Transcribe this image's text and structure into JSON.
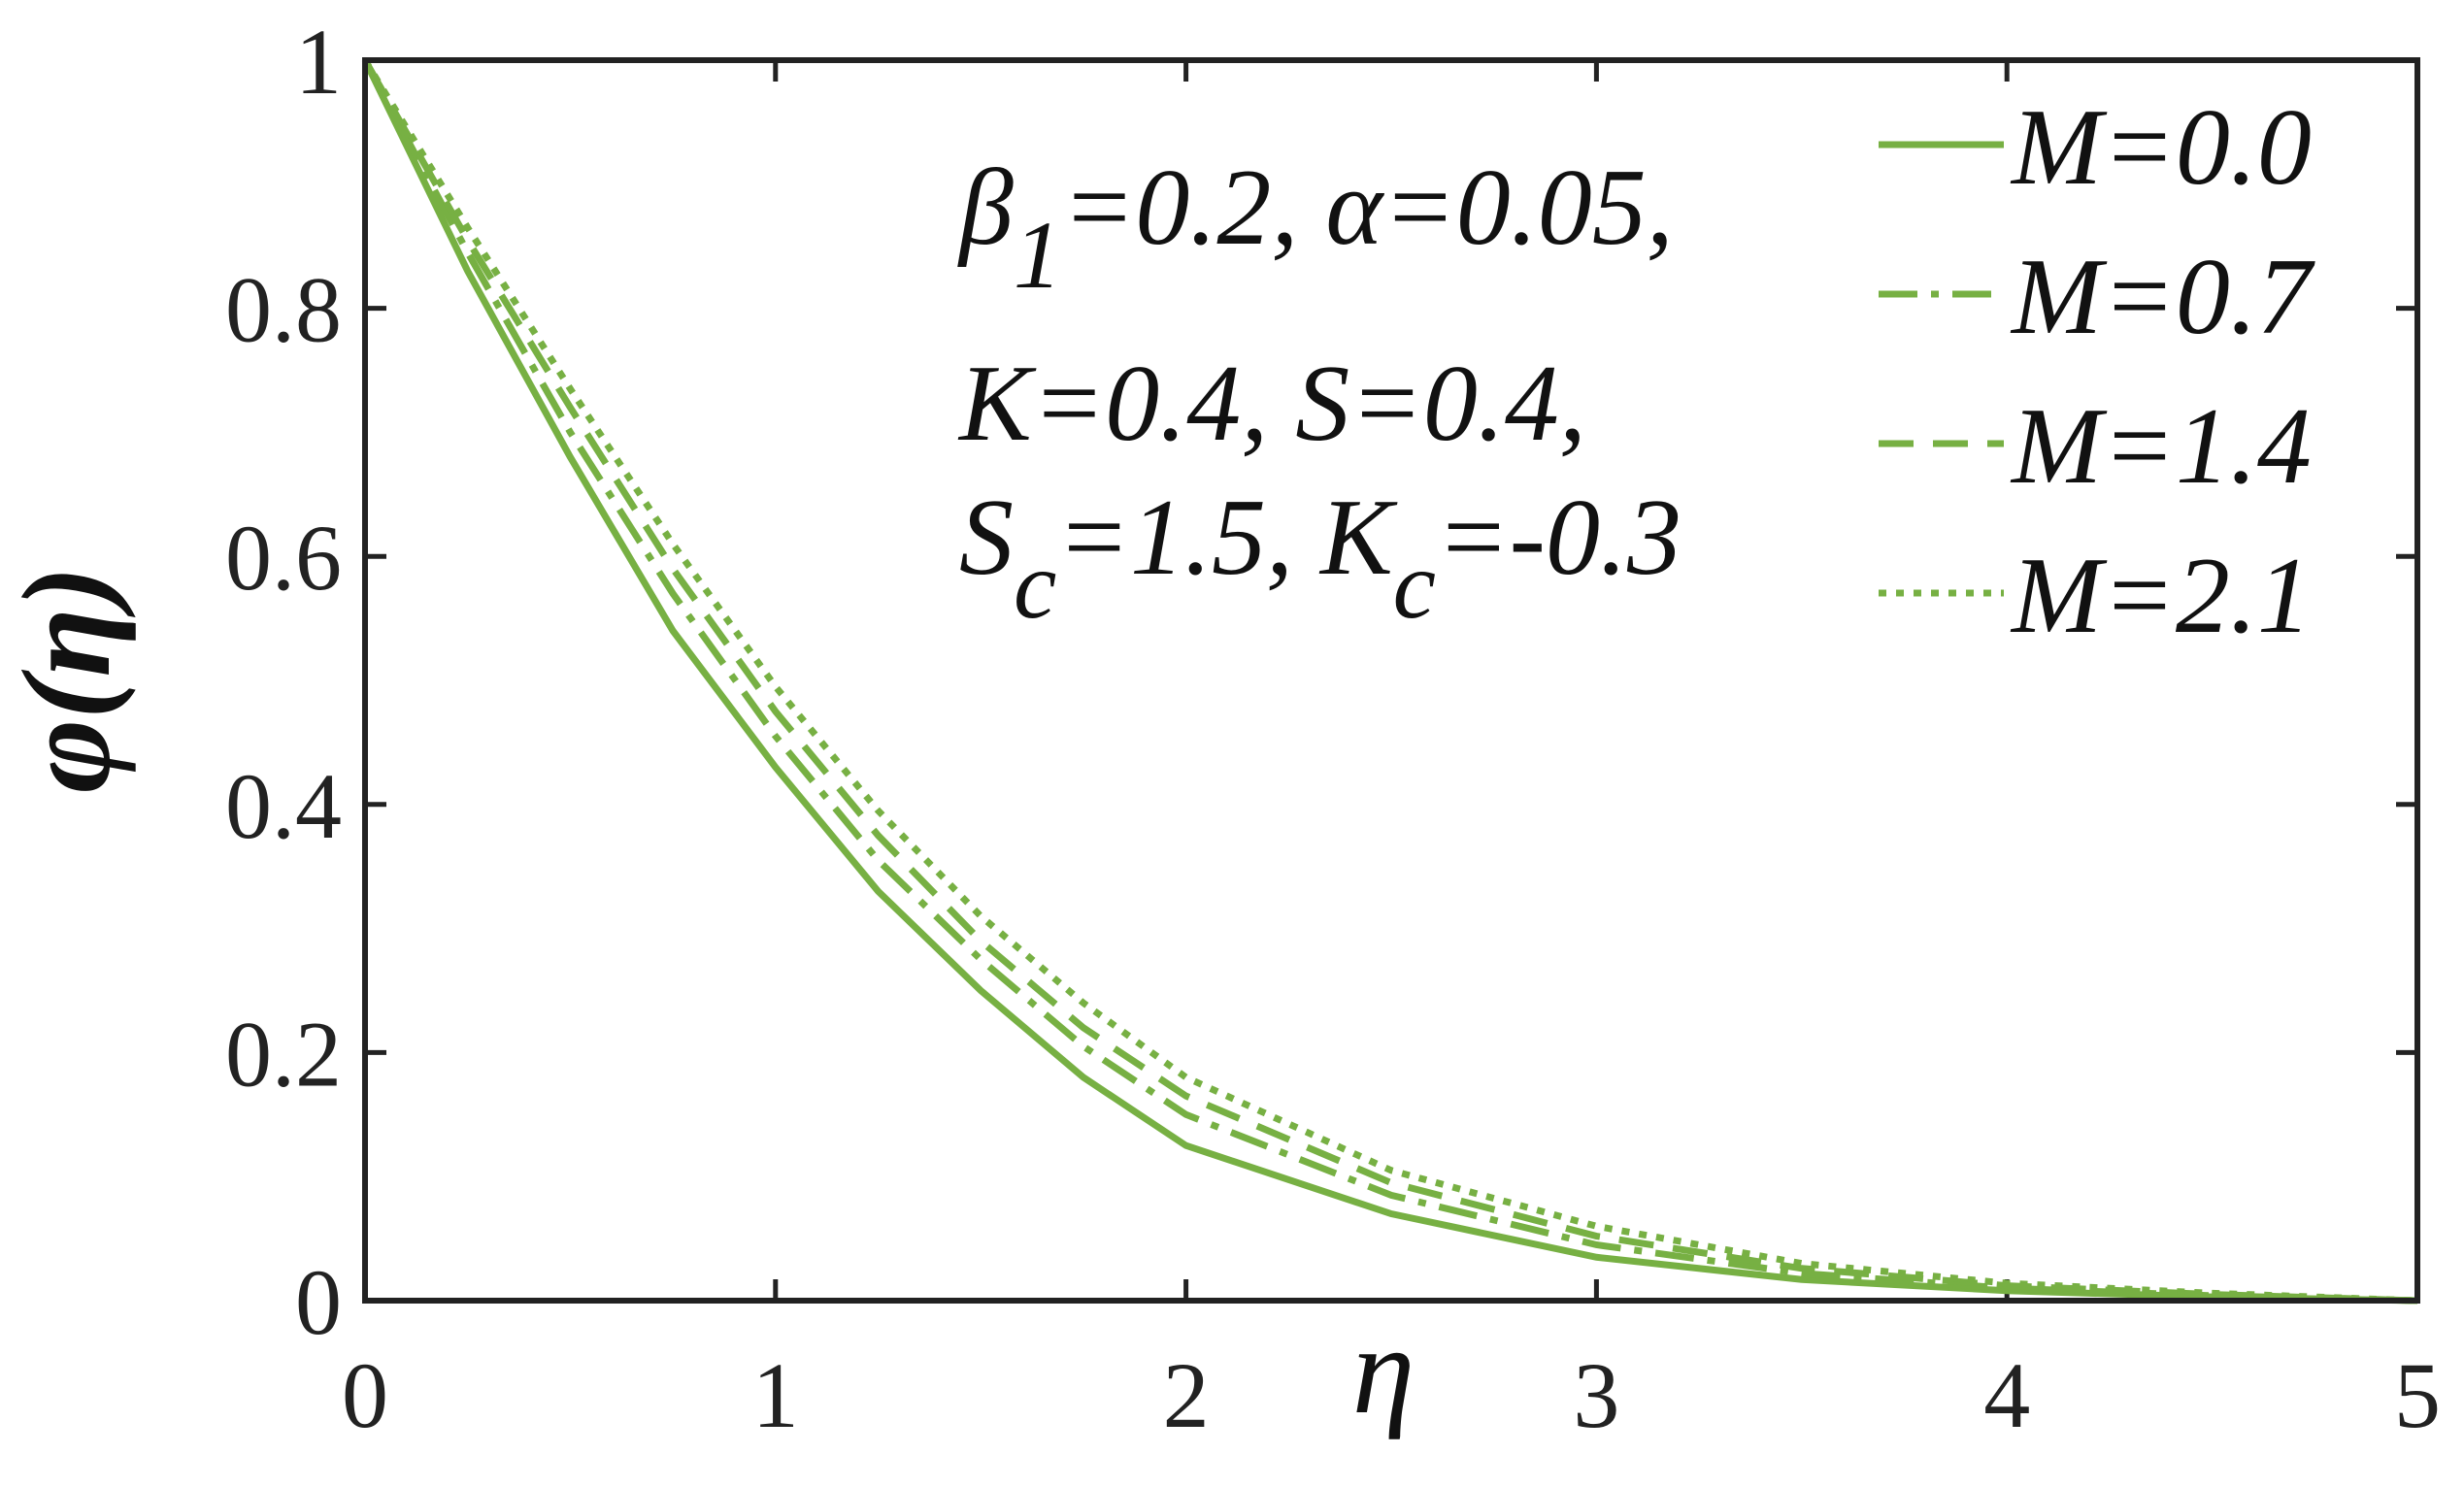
{
  "chart_data": {
    "type": "line",
    "x": [
      0,
      0.25,
      0.5,
      0.75,
      1,
      1.25,
      1.5,
      1.75,
      2,
      2.5,
      3,
      3.5,
      4,
      4.5,
      5
    ],
    "series": [
      {
        "name": "M=0.0",
        "color": "#77b043",
        "style": "solid",
        "values": [
          1,
          0.83,
          0.68,
          0.54,
          0.43,
          0.33,
          0.25,
          0.18,
          0.125,
          0.07,
          0.035,
          0.017,
          0.008,
          0.003,
          0
        ]
      },
      {
        "name": "M=0.7",
        "color": "#77b043",
        "style": "dashdot",
        "values": [
          1,
          0.845,
          0.7,
          0.57,
          0.455,
          0.355,
          0.275,
          0.205,
          0.15,
          0.085,
          0.045,
          0.022,
          0.01,
          0.004,
          0
        ]
      },
      {
        "name": "M=1.4",
        "color": "#77b043",
        "style": "dashed",
        "values": [
          1,
          0.855,
          0.72,
          0.59,
          0.475,
          0.375,
          0.29,
          0.22,
          0.165,
          0.095,
          0.052,
          0.026,
          0.012,
          0.005,
          0
        ]
      },
      {
        "name": "M=2.1",
        "color": "#77b043",
        "style": "dotted",
        "values": [
          1,
          0.865,
          0.735,
          0.61,
          0.495,
          0.395,
          0.31,
          0.24,
          0.18,
          0.105,
          0.06,
          0.03,
          0.014,
          0.006,
          0
        ]
      }
    ],
    "x_label": "η",
    "y_label": "φ(η)",
    "annotation": [
      [
        "β",
        "1",
        "=0.2, α=0.05,"
      ],
      [
        "K=0.4, S=0.4,"
      ],
      [
        "S",
        "c",
        "=1.5, K",
        "c",
        "=-0.3"
      ]
    ],
    "xlim": [
      0,
      5
    ],
    "ylim": [
      0,
      1
    ],
    "xticks": [
      0,
      1,
      2,
      3,
      4,
      5
    ],
    "yticks": [
      0,
      0.2,
      0.4,
      0.6,
      0.8,
      1
    ],
    "grid": false,
    "legend": "upper right"
  }
}
